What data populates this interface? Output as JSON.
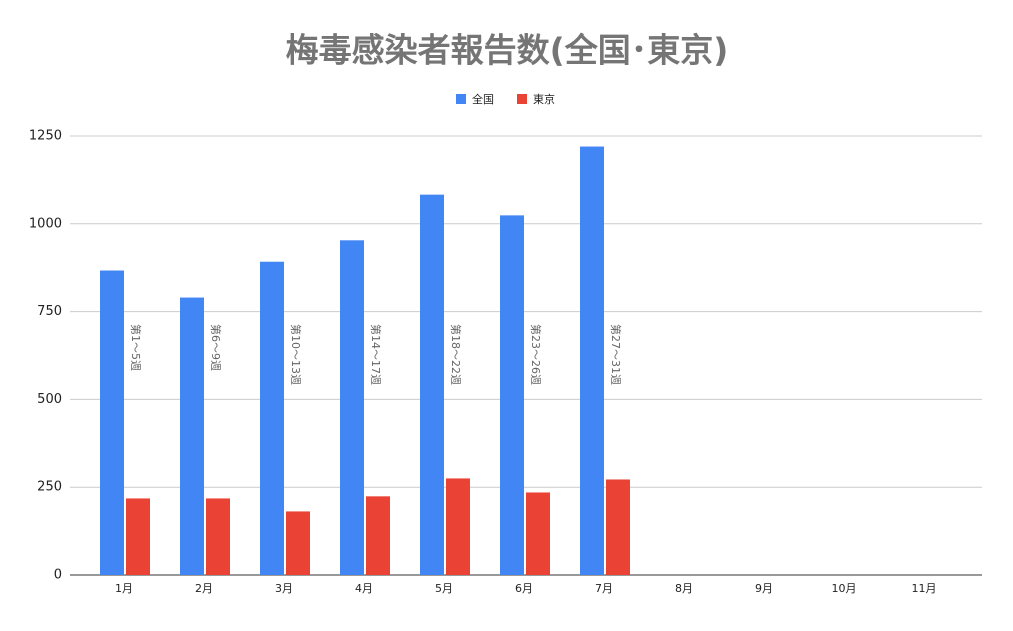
{
  "chart_data": {
    "type": "bar",
    "title": "梅毒感染者報告数(全国･東京)",
    "categories": [
      "1月",
      "2月",
      "3月",
      "4月",
      "5月",
      "6月",
      "7月",
      "8月",
      "9月",
      "10月",
      "11月"
    ],
    "series": [
      {
        "name": "全国",
        "color": "#4285f4",
        "values": [
          867,
          790,
          892,
          953,
          1083,
          1024,
          1220,
          null,
          null,
          null,
          null
        ]
      },
      {
        "name": "東京",
        "color": "#ea4335",
        "values": [
          218,
          218,
          181,
          224,
          275,
          235,
          272,
          null,
          null,
          null,
          null
        ]
      }
    ],
    "annotations": [
      "第1～5週",
      "第6～9週",
      "第10～13週",
      "第14～17週",
      "第18～22週",
      "第23～26週",
      "第27～31週"
    ],
    "ylim": [
      0,
      1250
    ],
    "yticks": [
      0,
      250,
      500,
      750,
      1000,
      1250
    ],
    "grid": true,
    "legend": "top"
  }
}
